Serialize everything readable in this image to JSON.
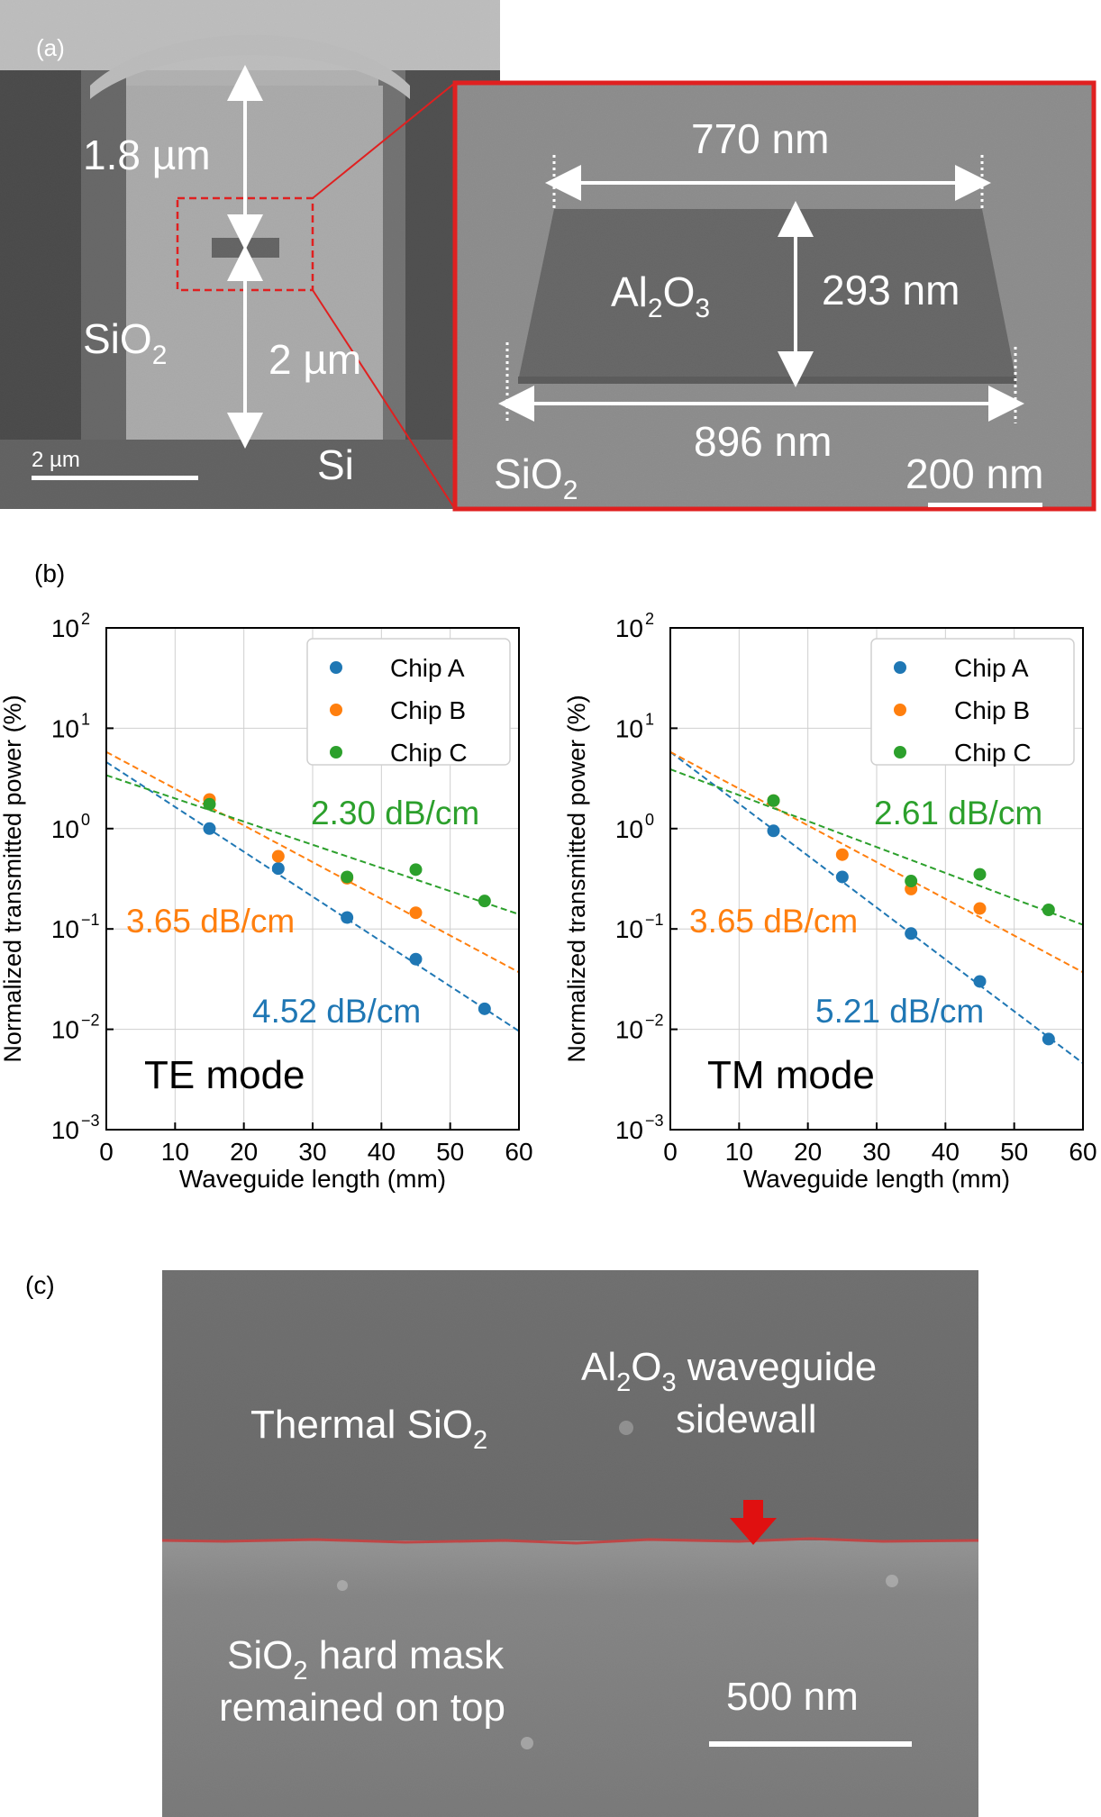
{
  "panel_a": {
    "label": "(a)",
    "overview": {
      "dim_top": "1.8 µm",
      "dim_bottom": "2 µm",
      "material_cladding": "SiO",
      "material_cladding_sub": "2",
      "material_substrate": "Si",
      "scale_label": "2 µm"
    },
    "zoom": {
      "top_width": "770 nm",
      "bottom_width": "896 nm",
      "height": "293 nm",
      "core_main": "Al",
      "core_sub1": "2",
      "core_mid": "O",
      "core_sub2": "3",
      "cladding_main": "SiO",
      "cladding_sub": "2",
      "scale_label": "200 nm"
    }
  },
  "panel_b": {
    "label": "(b)",
    "ylabel": "Normalized transmitted power (%)",
    "xlabel": "Waveguide length (mm)",
    "xticks": [
      "0",
      "10",
      "20",
      "30",
      "40",
      "50",
      "60"
    ],
    "ytick_base": "10",
    "ytick_exps": [
      "2",
      "1",
      "0",
      "−1",
      "−2",
      "−3"
    ],
    "legend": [
      "Chip A",
      "Chip B",
      "Chip C"
    ],
    "colors": {
      "A": "#1f77b4",
      "B": "#ff7f0e",
      "C": "#2ca02c"
    }
  },
  "chart_data": [
    {
      "type": "scatter",
      "title": "TE mode",
      "xlabel": "Waveguide length (mm)",
      "ylabel": "Normalized transmitted power (%)",
      "xlim": [
        0,
        60
      ],
      "ylim": [
        0.001,
        100
      ],
      "yscale": "log",
      "grid": true,
      "legend": "top-right",
      "series": [
        {
          "name": "Chip A",
          "x": [
            15,
            25,
            35,
            45,
            55
          ],
          "y": [
            1.0,
            0.4,
            0.13,
            0.05,
            0.016
          ],
          "fit_label": "4.52 dB/cm",
          "fit": [
            [
              0,
              4.6
            ],
            [
              60,
              0.0096
            ]
          ]
        },
        {
          "name": "Chip B",
          "x": [
            15,
            25,
            35,
            45
          ],
          "y": [
            1.95,
            0.53,
            0.32,
            0.145
          ],
          "fit_label": "3.65 dB/cm",
          "fit": [
            [
              0,
              5.8
            ],
            [
              60,
              0.037
            ]
          ]
        },
        {
          "name": "Chip C",
          "x": [
            15,
            35,
            45,
            55
          ],
          "y": [
            1.75,
            0.33,
            0.39,
            0.19
          ],
          "fit_label": "2.30 dB/cm",
          "fit": [
            [
              0,
              3.4
            ],
            [
              60,
              0.14
            ]
          ]
        }
      ]
    },
    {
      "type": "scatter",
      "title": "TM mode",
      "xlabel": "Waveguide length (mm)",
      "ylabel": "Normalized transmitted power (%)",
      "xlim": [
        0,
        60
      ],
      "ylim": [
        0.001,
        100
      ],
      "yscale": "log",
      "grid": true,
      "legend": "top-right",
      "series": [
        {
          "name": "Chip A",
          "x": [
            15,
            25,
            35,
            45,
            55
          ],
          "y": [
            0.95,
            0.33,
            0.09,
            0.03,
            0.008
          ],
          "fit_label": "5.21 dB/cm",
          "fit": [
            [
              0,
              5.8
            ],
            [
              60,
              0.0046
            ]
          ]
        },
        {
          "name": "Chip B",
          "x": [
            15,
            25,
            35,
            45
          ],
          "y": [
            1.9,
            0.55,
            0.25,
            0.16
          ],
          "fit_label": "3.65 dB/cm",
          "fit": [
            [
              0,
              5.8
            ],
            [
              60,
              0.037
            ]
          ]
        },
        {
          "name": "Chip C",
          "x": [
            15,
            35,
            45,
            55
          ],
          "y": [
            1.9,
            0.3,
            0.35,
            0.155
          ],
          "fit_label": "2.61 dB/cm",
          "fit": [
            [
              0,
              3.9
            ],
            [
              60,
              0.11
            ]
          ]
        }
      ]
    }
  ],
  "panel_c": {
    "label": "(c)",
    "thermal_main": "Thermal SiO",
    "thermal_sub": "2",
    "wg_l1_a": "Al",
    "wg_l1_s1": "2",
    "wg_l1_b": "O",
    "wg_l1_s2": "3",
    "wg_l1_c": " waveguide",
    "wg_l2": "sidewall",
    "mask_l1_a": "SiO",
    "mask_l1_s": "2",
    "mask_l1_b": " hard mask",
    "mask_l2": "remained on top",
    "scale_label": "500 nm"
  }
}
